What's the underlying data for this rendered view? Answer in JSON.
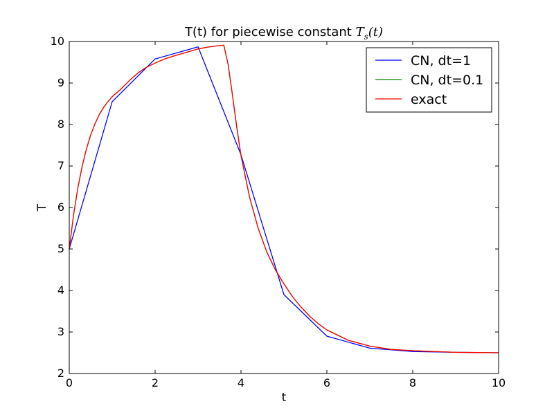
{
  "chart_data": {
    "type": "line",
    "title": {
      "prefix": "T(t) for piecewise constant ",
      "math_T": "T",
      "math_sub": "s",
      "math_arg": "(t)"
    },
    "xlabel": "t",
    "ylabel": "T",
    "xlim": [
      0,
      10
    ],
    "ylim": [
      2,
      10
    ],
    "xticks": [
      0,
      2,
      4,
      6,
      8,
      10
    ],
    "yticks": [
      2,
      3,
      4,
      5,
      6,
      7,
      8,
      9,
      10
    ],
    "grid": false,
    "legend_position": "top-right",
    "series": [
      {
        "name": "CN, dt=1",
        "color": "#0000ff",
        "x": [
          0,
          1,
          2,
          3,
          4,
          5,
          6,
          7,
          8,
          9,
          10
        ],
        "y": [
          5.0,
          8.55,
          9.58,
          9.87,
          7.27,
          3.9,
          2.9,
          2.61,
          2.53,
          2.51,
          2.5
        ]
      },
      {
        "name": "CN, dt=0.1",
        "color": "#008000",
        "x": [
          0,
          0.1,
          0.2,
          0.3,
          0.4,
          0.5,
          0.6,
          0.7,
          0.8,
          0.9,
          1.0,
          1.2,
          1.4,
          1.6,
          1.8,
          2.0,
          2.2,
          2.4,
          2.6,
          2.8,
          3.0,
          3.2,
          3.4,
          3.6,
          3.7,
          3.8,
          3.9,
          4.0,
          4.2,
          4.4,
          4.6,
          4.8,
          5.0,
          5.2,
          5.4,
          5.6,
          5.8,
          6.0,
          6.5,
          7.0,
          7.5,
          8.0,
          8.5,
          9.0,
          9.5,
          10.0
        ],
        "y": [
          5.0,
          5.82,
          6.47,
          6.99,
          7.41,
          7.75,
          8.02,
          8.24,
          8.41,
          8.55,
          8.67,
          8.85,
          9.06,
          9.24,
          9.38,
          9.48,
          9.57,
          9.64,
          9.7,
          9.76,
          9.82,
          9.86,
          9.89,
          9.91,
          9.45,
          8.72,
          7.95,
          7.25,
          6.25,
          5.5,
          4.93,
          4.5,
          4.16,
          3.85,
          3.6,
          3.38,
          3.2,
          3.05,
          2.8,
          2.66,
          2.58,
          2.55,
          2.53,
          2.51,
          2.505,
          2.5
        ]
      },
      {
        "name": "exact",
        "color": "#ff0000",
        "x": [
          0,
          0.1,
          0.2,
          0.3,
          0.4,
          0.5,
          0.6,
          0.7,
          0.8,
          0.9,
          1.0,
          1.2,
          1.4,
          1.6,
          1.8,
          2.0,
          2.2,
          2.4,
          2.6,
          2.8,
          3.0,
          3.2,
          3.4,
          3.6,
          3.7,
          3.8,
          3.9,
          4.0,
          4.2,
          4.4,
          4.6,
          4.8,
          5.0,
          5.2,
          5.4,
          5.6,
          5.8,
          6.0,
          6.5,
          7.0,
          7.5,
          8.0,
          8.5,
          9.0,
          9.5,
          10.0
        ],
        "y": [
          5.0,
          5.82,
          6.47,
          6.99,
          7.41,
          7.75,
          8.02,
          8.24,
          8.41,
          8.55,
          8.67,
          8.85,
          9.06,
          9.24,
          9.38,
          9.48,
          9.57,
          9.64,
          9.7,
          9.76,
          9.82,
          9.86,
          9.89,
          9.91,
          9.45,
          8.72,
          7.95,
          7.25,
          6.25,
          5.5,
          4.93,
          4.5,
          4.16,
          3.85,
          3.6,
          3.38,
          3.2,
          3.05,
          2.8,
          2.66,
          2.58,
          2.55,
          2.53,
          2.51,
          2.505,
          2.5
        ]
      }
    ]
  }
}
